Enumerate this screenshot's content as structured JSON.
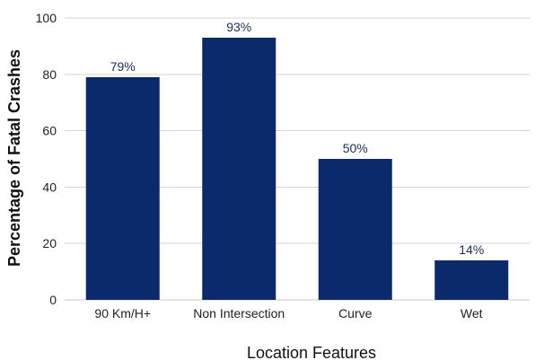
{
  "chart_data": {
    "type": "bar",
    "title": "",
    "xlabel": "Location Features",
    "ylabel": "Percentage of Fatal Crashes",
    "categories": [
      "90 Km/H+",
      "Non Intersection",
      "Curve",
      "Wet"
    ],
    "values": [
      79,
      93,
      50,
      14
    ],
    "data_labels": [
      "79%",
      "93%",
      "50%",
      "14%"
    ],
    "ylim": [
      0,
      100
    ],
    "y_ticks": [
      0,
      20,
      40,
      60,
      80,
      100
    ],
    "grid": true,
    "legend": "none",
    "bar_color": "#0b2a6b",
    "label_color": "#1b2f63"
  }
}
